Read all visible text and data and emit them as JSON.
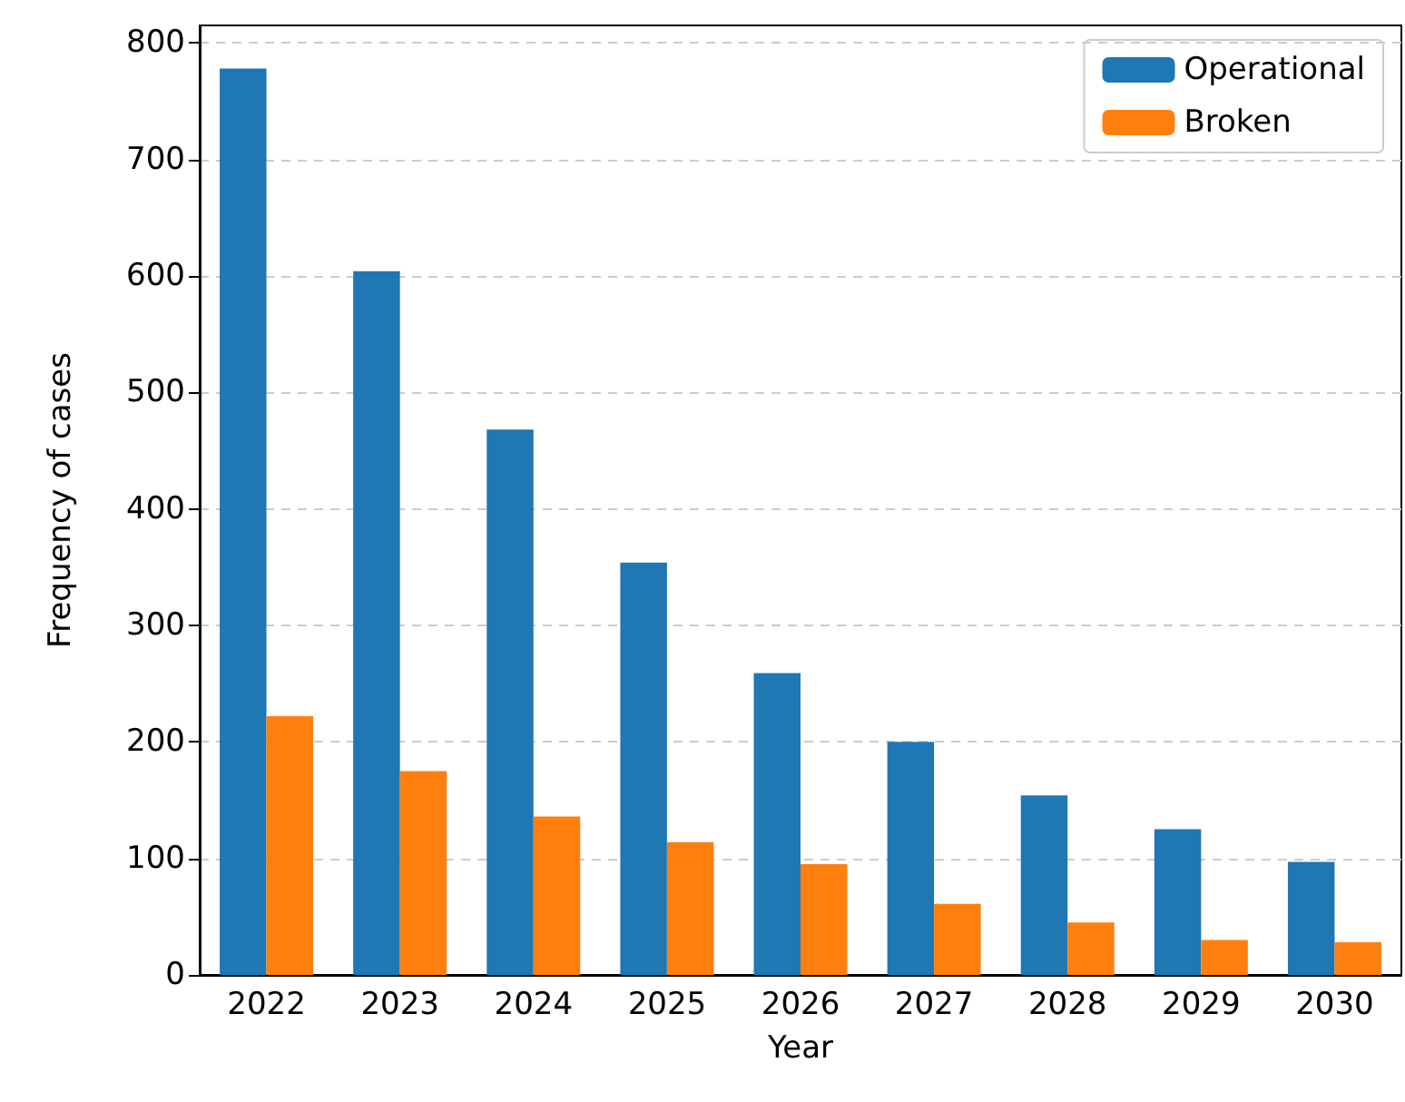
{
  "chart_data": {
    "type": "bar",
    "xlabel": "Year",
    "ylabel": "Frequency of cases",
    "categories": [
      "2022",
      "2023",
      "2024",
      "2025",
      "2026",
      "2027",
      "2028",
      "2029",
      "2030"
    ],
    "series": [
      {
        "name": "Operational",
        "color": "#1f77b4",
        "values": [
          778,
          604,
          468,
          354,
          259,
          200,
          154,
          125,
          97
        ]
      },
      {
        "name": "Broken",
        "color": "#ff7f0e",
        "values": [
          222,
          175,
          136,
          114,
          95,
          61,
          45,
          30,
          28
        ]
      }
    ],
    "ylim": [
      0,
      815
    ],
    "yticks": [
      0,
      100,
      200,
      300,
      400,
      500,
      600,
      700,
      800
    ],
    "grid": "y",
    "legend": "top right"
  }
}
